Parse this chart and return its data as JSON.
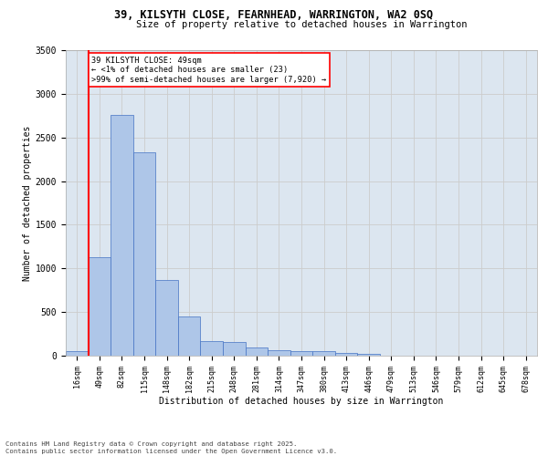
{
  "title1": "39, KILSYTH CLOSE, FEARNHEAD, WARRINGTON, WA2 0SQ",
  "title2": "Size of property relative to detached houses in Warrington",
  "xlabel": "Distribution of detached houses by size in Warrington",
  "ylabel": "Number of detached properties",
  "categories": [
    "16sqm",
    "49sqm",
    "82sqm",
    "115sqm",
    "148sqm",
    "182sqm",
    "215sqm",
    "248sqm",
    "281sqm",
    "314sqm",
    "347sqm",
    "380sqm",
    "413sqm",
    "446sqm",
    "479sqm",
    "513sqm",
    "546sqm",
    "579sqm",
    "612sqm",
    "645sqm",
    "678sqm"
  ],
  "values": [
    50,
    1130,
    2760,
    2330,
    870,
    450,
    170,
    160,
    90,
    65,
    55,
    55,
    30,
    25,
    0,
    0,
    0,
    0,
    0,
    0,
    0
  ],
  "bar_color": "#aec6e8",
  "bar_edge_color": "#4472c4",
  "highlight_color": "#ff0000",
  "annotation_title": "39 KILSYTH CLOSE: 49sqm",
  "annotation_line1": "← <1% of detached houses are smaller (23)",
  "annotation_line2": ">99% of semi-detached houses are larger (7,920) →",
  "annotation_box_color": "#ffffff",
  "annotation_box_edge": "#ff0000",
  "vline_bar_index": 1,
  "ylim": [
    0,
    3500
  ],
  "yticks": [
    0,
    500,
    1000,
    1500,
    2000,
    2500,
    3000,
    3500
  ],
  "grid_color": "#cccccc",
  "bg_color": "#dce6f0",
  "fig_color": "#ffffff",
  "footer1": "Contains HM Land Registry data © Crown copyright and database right 2025.",
  "footer2": "Contains public sector information licensed under the Open Government Licence v3.0."
}
